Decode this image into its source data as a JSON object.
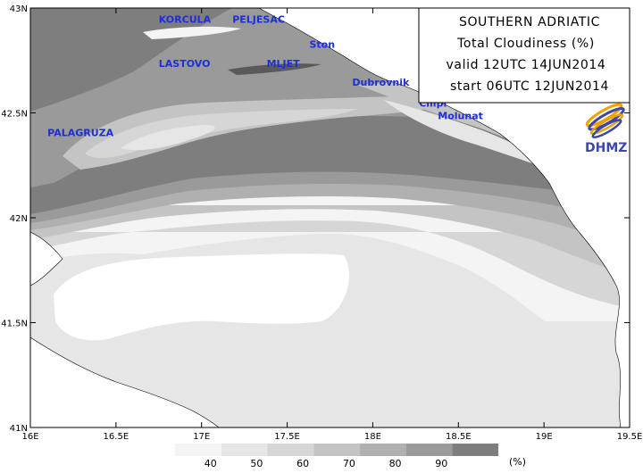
{
  "info_box": {
    "title": "SOUTHERN ADRIATIC",
    "variable": "Total Cloudiness (%)",
    "valid": "valid 12UTC 14JUN2014",
    "start": "start 06UTC 12JUN2014"
  },
  "logo": {
    "text": "DHMZ",
    "icon": "dhmz-swirl-logo-icon"
  },
  "axes": {
    "lat_labels": [
      "43N",
      "42.5N",
      "42N",
      "41.5N",
      "41N"
    ],
    "lon_labels": [
      "16E",
      "16.5E",
      "17E",
      "17.5E",
      "18E",
      "18.5E",
      "19E",
      "19.5E"
    ],
    "lat_range": [
      41.0,
      43.0
    ],
    "lon_range": [
      16.0,
      19.5
    ]
  },
  "places": [
    {
      "name": "KORCULA",
      "lon": 16.75,
      "lat": 42.93
    },
    {
      "name": "PELJESAC",
      "lon": 17.18,
      "lat": 42.93
    },
    {
      "name": "Ston",
      "lon": 17.63,
      "lat": 42.81
    },
    {
      "name": "LASTOVO",
      "lon": 16.75,
      "lat": 42.72
    },
    {
      "name": "MLJET",
      "lon": 17.38,
      "lat": 42.72
    },
    {
      "name": "Dubrovnik",
      "lon": 17.88,
      "lat": 42.63
    },
    {
      "name": "Cilipi",
      "lon": 18.27,
      "lat": 42.53
    },
    {
      "name": "Molunat",
      "lon": 18.38,
      "lat": 42.47
    },
    {
      "name": "PALAGRUZA",
      "lon": 16.1,
      "lat": 42.39
    }
  ],
  "legend": {
    "levels": [
      "40",
      "50",
      "60",
      "70",
      "80",
      "90"
    ],
    "unit": "(%)",
    "colors": [
      "#f4f4f4",
      "#e6e6e6",
      "#d6d6d6",
      "#c4c4c4",
      "#b0b0b0",
      "#9a9a9a",
      "#7e7e7e"
    ]
  },
  "colors": {
    "land": "#ffffff",
    "label": "#1e2fd6",
    "frame": "#000000"
  }
}
